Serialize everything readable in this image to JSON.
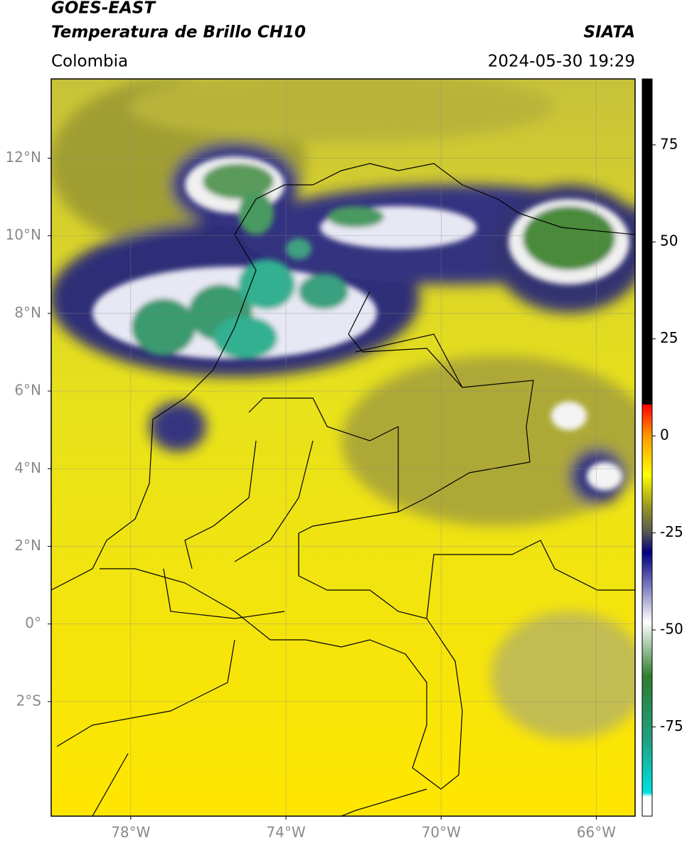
{
  "header": {
    "title": "GOES-EAST",
    "subtitle": "Temperatura de Brillo CH10",
    "source": "SIATA",
    "region": "Colombia",
    "timestamp": "2024-05-30 19:29"
  },
  "map": {
    "xlim": [
      -80.05,
      -65
    ],
    "ylim": [
      -4.95,
      14.04
    ],
    "xticks": [
      {
        "value": -78,
        "label": "78°W"
      },
      {
        "value": -74,
        "label": "74°W"
      },
      {
        "value": -70,
        "label": "70°W"
      },
      {
        "value": -66,
        "label": "66°W"
      }
    ],
    "yticks": [
      {
        "value": 12,
        "label": "12°N"
      },
      {
        "value": 10,
        "label": "10°N"
      },
      {
        "value": 8,
        "label": "8°N"
      },
      {
        "value": 6,
        "label": "6°N"
      },
      {
        "value": 4,
        "label": "4°N"
      },
      {
        "value": 2,
        "label": "2°N"
      },
      {
        "value": 0,
        "label": "0°"
      },
      {
        "value": -2,
        "label": "2°S"
      }
    ],
    "grid": true
  },
  "colorbar": {
    "lim": [
      -98,
      92
    ],
    "ticks": [
      75,
      50,
      25,
      0,
      -25,
      -50,
      -75
    ]
  }
}
